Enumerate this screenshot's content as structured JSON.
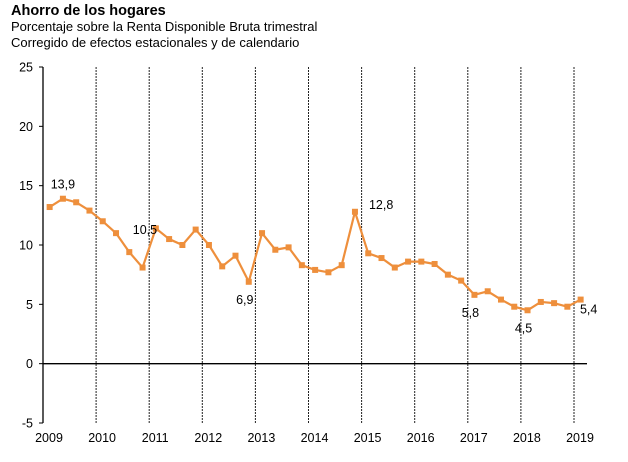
{
  "chart_data": {
    "type": "line",
    "title": "Ahorro de los hogares",
    "subtitle_lines": [
      "Porcentaje sobre la Renta Disponible Bruta trimestral",
      "Corregido de efectos estacionales y de calendario"
    ],
    "xlabel": "",
    "ylabel": "",
    "ylim": [
      -5,
      25
    ],
    "yticks": [
      25,
      20,
      15,
      10,
      5,
      0,
      -5
    ],
    "xticks": [
      "2009",
      "2010",
      "2011",
      "2012",
      "2013",
      "2014",
      "2015",
      "2016",
      "2017",
      "2018",
      "2019"
    ],
    "grid": "vertical dashed lines at year boundaries",
    "legend": "none",
    "series": [
      {
        "name": "Ahorro de los hogares",
        "color": "#ee8f3c",
        "x": [
          "2009Q1",
          "2009Q2",
          "2009Q3",
          "2009Q4",
          "2010Q1",
          "2010Q2",
          "2010Q3",
          "2010Q4",
          "2011Q1",
          "2011Q2",
          "2011Q3",
          "2011Q4",
          "2012Q1",
          "2012Q2",
          "2012Q3",
          "2012Q4",
          "2013Q1",
          "2013Q2",
          "2013Q3",
          "2013Q4",
          "2014Q1",
          "2014Q2",
          "2014Q3",
          "2014Q4",
          "2015Q1",
          "2015Q2",
          "2015Q3",
          "2015Q4",
          "2016Q1",
          "2016Q2",
          "2016Q3",
          "2016Q4",
          "2017Q1",
          "2017Q2",
          "2017Q3",
          "2017Q4",
          "2018Q1",
          "2018Q2",
          "2018Q3",
          "2018Q4",
          "2019Q1"
        ],
        "values": [
          13.2,
          13.9,
          13.6,
          12.9,
          12.0,
          11.0,
          9.4,
          8.1,
          11.4,
          10.5,
          10.0,
          11.3,
          10.0,
          8.2,
          9.1,
          6.9,
          11.0,
          9.6,
          9.8,
          8.3,
          7.9,
          7.7,
          8.3,
          12.8,
          9.3,
          8.9,
          8.1,
          8.6,
          8.6,
          8.4,
          7.5,
          7.0,
          5.8,
          6.1,
          5.4,
          4.8,
          4.5,
          5.2,
          5.1,
          4.8,
          5.4
        ]
      }
    ],
    "annotations": [
      {
        "index": 1,
        "text": "13,9",
        "position": "above"
      },
      {
        "index": 9,
        "text": "10,5",
        "position": "right"
      },
      {
        "index": 15,
        "text": "6,9",
        "position": "below"
      },
      {
        "index": 23,
        "text": "12,8",
        "position": "right"
      },
      {
        "index": 32,
        "text": "5,8",
        "position": "below"
      },
      {
        "index": 36,
        "text": "4,5",
        "position": "below"
      },
      {
        "index": 40,
        "text": "5,4",
        "position": "below-right"
      }
    ]
  }
}
